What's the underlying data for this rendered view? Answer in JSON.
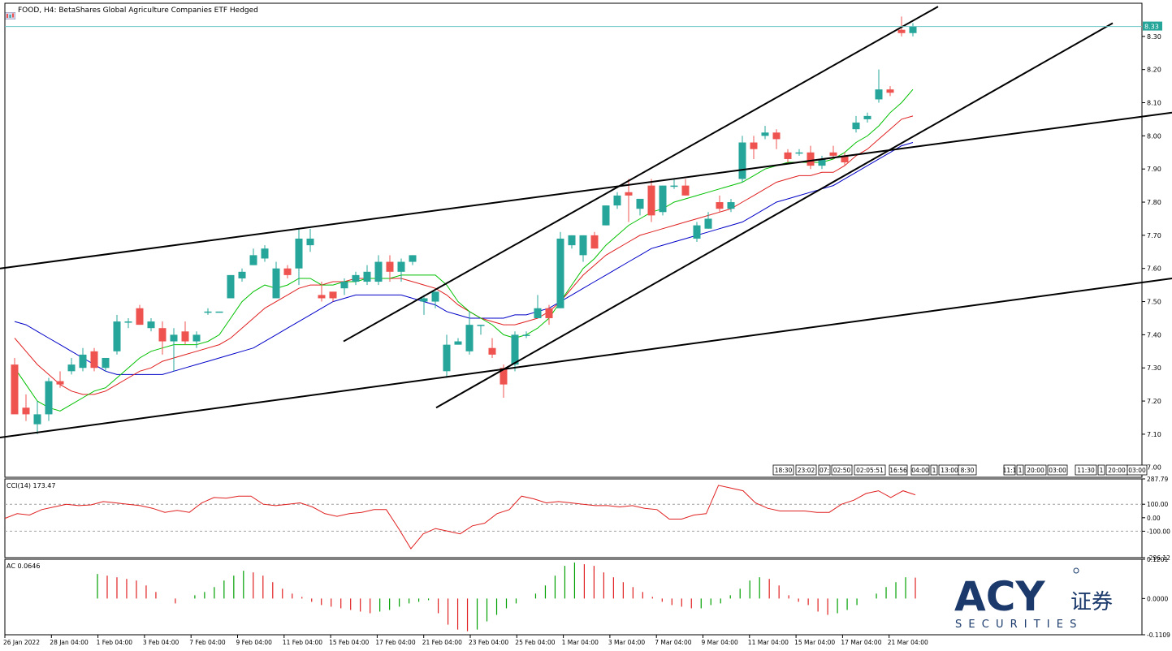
{
  "header": {
    "title": "FOOD, H4:  BetaShares Global Agriculture Companies ETF Hedged"
  },
  "brand": {
    "logo_text": "ACY",
    "logo_cn": "证券",
    "tagline": "S E C U R I T I E S"
  },
  "colors": {
    "bull": "#26a69a",
    "bear": "#ef5350",
    "ma_fast": "#00c000",
    "ma_mid": "#e02020",
    "ma_slow": "#0000c8",
    "cci_line": "#e02020",
    "bid_line": "#66c2c2",
    "logo": "#1b3a6b"
  },
  "price_pane": {
    "current_price_label": "8.33",
    "time_stamp_boxes": [
      "18:30",
      "23:02",
      "07:",
      "02:50",
      "02:05:51",
      "16:56",
      "04:00",
      "1",
      "13:00",
      "8:30",
      "11:1",
      "1",
      "20:00",
      "03:00",
      "11:30",
      "1",
      "20:00",
      "03:00"
    ]
  },
  "cci_pane": {
    "label": "CCI(14) 173.47",
    "y_ticks": [
      "287.79",
      "100.00",
      "0.00",
      "-100.00",
      "-296.12"
    ]
  },
  "ac_pane": {
    "label": "AC 0.0646",
    "y_ticks": [
      "0.1201",
      "0.0000",
      "-0.1109"
    ]
  },
  "x_axis": {
    "labels": [
      "26 Jan 2022",
      "28 Jan 04:00",
      "1 Feb 04:00",
      "3 Feb 04:00",
      "7 Feb 04:00",
      "9 Feb 04:00",
      "11 Feb 04:00",
      "15 Feb 04:00",
      "17 Feb 04:00",
      "21 Feb 04:00",
      "23 Feb 04:00",
      "25 Feb 04:00",
      "1 Mar 04:00",
      "3 Mar 04:00",
      "7 Mar 04:00",
      "9 Mar 04:00",
      "11 Mar 04:00",
      "15 Mar 04:00",
      "17 Mar 04:00",
      "21 Mar 04:00"
    ]
  },
  "chart_data": {
    "type": "candlestick",
    "y_axis": {
      "ticks": [
        7.0,
        7.1,
        7.2,
        7.3,
        7.4,
        7.5,
        7.6,
        7.7,
        7.8,
        7.9,
        8.0,
        8.1,
        8.2,
        8.3
      ],
      "range": [
        6.97,
        8.4
      ]
    },
    "candles": [
      {
        "o": 7.31,
        "h": 7.33,
        "l": 7.17,
        "c": 7.16
      },
      {
        "o": 7.18,
        "h": 7.22,
        "l": 7.14,
        "c": 7.16
      },
      {
        "o": 7.13,
        "h": 7.2,
        "l": 7.1,
        "c": 7.16
      },
      {
        "o": 7.16,
        "h": 7.27,
        "l": 7.14,
        "c": 7.26
      },
      {
        "o": 7.26,
        "h": 7.29,
        "l": 7.24,
        "c": 7.25
      },
      {
        "o": 7.29,
        "h": 7.33,
        "l": 7.28,
        "c": 7.31
      },
      {
        "o": 7.3,
        "h": 7.36,
        "l": 7.29,
        "c": 7.34
      },
      {
        "o": 7.35,
        "h": 7.36,
        "l": 7.29,
        "c": 7.3
      },
      {
        "o": 7.3,
        "h": 7.33,
        "l": 7.29,
        "c": 7.33
      },
      {
        "o": 7.35,
        "h": 7.46,
        "l": 7.34,
        "c": 7.44
      },
      {
        "o": 7.44,
        "h": 7.45,
        "l": 7.42,
        "c": 7.44
      },
      {
        "o": 7.48,
        "h": 7.49,
        "l": 7.43,
        "c": 7.43
      },
      {
        "o": 7.42,
        "h": 7.45,
        "l": 7.41,
        "c": 7.44
      },
      {
        "o": 7.42,
        "h": 7.44,
        "l": 7.34,
        "c": 7.38
      },
      {
        "o": 7.38,
        "h": 7.42,
        "l": 7.29,
        "c": 7.4
      },
      {
        "o": 7.41,
        "h": 7.44,
        "l": 7.37,
        "c": 7.38
      },
      {
        "o": 7.38,
        "h": 7.41,
        "l": 7.36,
        "c": 7.4
      },
      {
        "o": 7.47,
        "h": 7.48,
        "l": 7.46,
        "c": 7.47
      },
      {
        "o": 7.47,
        "h": 7.47,
        "l": 7.47,
        "c": 7.47
      },
      {
        "o": 7.51,
        "h": 7.58,
        "l": 7.51,
        "c": 7.58
      },
      {
        "o": 7.57,
        "h": 7.6,
        "l": 7.56,
        "c": 7.59
      },
      {
        "o": 7.61,
        "h": 7.66,
        "l": 7.61,
        "c": 7.64
      },
      {
        "o": 7.63,
        "h": 7.67,
        "l": 7.62,
        "c": 7.66
      },
      {
        "o": 7.51,
        "h": 7.62,
        "l": 7.51,
        "c": 7.6
      },
      {
        "o": 7.6,
        "h": 7.61,
        "l": 7.57,
        "c": 7.58
      },
      {
        "o": 7.6,
        "h": 7.72,
        "l": 7.55,
        "c": 7.69
      },
      {
        "o": 7.67,
        "h": 7.72,
        "l": 7.65,
        "c": 7.69
      },
      {
        "o": 7.52,
        "h": 7.56,
        "l": 7.5,
        "c": 7.51
      },
      {
        "o": 7.53,
        "h": 7.52,
        "l": 7.5,
        "c": 7.51
      },
      {
        "o": 7.54,
        "h": 7.57,
        "l": 7.52,
        "c": 7.56
      },
      {
        "o": 7.56,
        "h": 7.59,
        "l": 7.55,
        "c": 7.58
      },
      {
        "o": 7.56,
        "h": 7.61,
        "l": 7.55,
        "c": 7.59
      },
      {
        "o": 7.56,
        "h": 7.64,
        "l": 7.55,
        "c": 7.62
      },
      {
        "o": 7.62,
        "h": 7.64,
        "l": 7.56,
        "c": 7.59
      },
      {
        "o": 7.59,
        "h": 7.63,
        "l": 7.56,
        "c": 7.62
      },
      {
        "o": 7.62,
        "h": 7.64,
        "l": 7.61,
        "c": 7.64
      },
      {
        "o": 7.5,
        "h": 7.52,
        "l": 7.46,
        "c": 7.51
      },
      {
        "o": 7.5,
        "h": 7.53,
        "l": 7.48,
        "c": 7.53
      },
      {
        "o": 7.29,
        "h": 7.4,
        "l": 7.27,
        "c": 7.37
      },
      {
        "o": 7.37,
        "h": 7.39,
        "l": 7.37,
        "c": 7.38
      },
      {
        "o": 7.35,
        "h": 7.47,
        "l": 7.34,
        "c": 7.43
      },
      {
        "o": 7.43,
        "h": 7.43,
        "l": 7.4,
        "c": 7.43
      },
      {
        "o": 7.36,
        "h": 7.39,
        "l": 7.33,
        "c": 7.34
      },
      {
        "o": 7.3,
        "h": 7.31,
        "l": 7.21,
        "c": 7.25
      },
      {
        "o": 7.31,
        "h": 7.41,
        "l": 7.29,
        "c": 7.4
      },
      {
        "o": 7.4,
        "h": 7.41,
        "l": 7.39,
        "c": 7.4
      },
      {
        "o": 7.45,
        "h": 7.52,
        "l": 7.45,
        "c": 7.48
      },
      {
        "o": 7.48,
        "h": 7.49,
        "l": 7.43,
        "c": 7.45
      },
      {
        "o": 7.48,
        "h": 7.71,
        "l": 7.48,
        "c": 7.69
      },
      {
        "o": 7.67,
        "h": 7.7,
        "l": 7.66,
        "c": 7.7
      },
      {
        "o": 7.64,
        "h": 7.7,
        "l": 7.62,
        "c": 7.7
      },
      {
        "o": 7.7,
        "h": 7.71,
        "l": 7.66,
        "c": 7.66
      },
      {
        "o": 7.73,
        "h": 7.79,
        "l": 7.73,
        "c": 7.79
      },
      {
        "o": 7.79,
        "h": 7.83,
        "l": 7.78,
        "c": 7.82
      },
      {
        "o": 7.83,
        "h": 7.87,
        "l": 7.74,
        "c": 7.82
      },
      {
        "o": 7.78,
        "h": 7.81,
        "l": 7.76,
        "c": 7.81
      },
      {
        "o": 7.85,
        "h": 7.87,
        "l": 7.74,
        "c": 7.76
      },
      {
        "o": 7.77,
        "h": 7.85,
        "l": 7.76,
        "c": 7.85
      },
      {
        "o": 7.85,
        "h": 7.87,
        "l": 7.84,
        "c": 7.85
      },
      {
        "o": 7.85,
        "h": 7.87,
        "l": 7.82,
        "c": 7.82
      },
      {
        "o": 7.69,
        "h": 7.74,
        "l": 7.68,
        "c": 7.73
      },
      {
        "o": 7.72,
        "h": 7.77,
        "l": 7.72,
        "c": 7.75
      },
      {
        "o": 7.8,
        "h": 7.82,
        "l": 7.77,
        "c": 7.78
      },
      {
        "o": 7.78,
        "h": 7.81,
        "l": 7.77,
        "c": 7.8
      },
      {
        "o": 7.87,
        "h": 8.0,
        "l": 7.86,
        "c": 7.98
      },
      {
        "o": 7.98,
        "h": 8.0,
        "l": 7.93,
        "c": 7.96
      },
      {
        "o": 8.0,
        "h": 8.03,
        "l": 7.99,
        "c": 8.01
      },
      {
        "o": 8.01,
        "h": 8.02,
        "l": 7.96,
        "c": 7.99
      },
      {
        "o": 7.95,
        "h": 7.96,
        "l": 7.92,
        "c": 7.93
      },
      {
        "o": 7.95,
        "h": 7.96,
        "l": 7.94,
        "c": 7.95
      },
      {
        "o": 7.95,
        "h": 7.97,
        "l": 7.9,
        "c": 7.91
      },
      {
        "o": 7.91,
        "h": 7.94,
        "l": 7.9,
        "c": 7.93
      },
      {
        "o": 7.95,
        "h": 7.97,
        "l": 7.93,
        "c": 7.94
      },
      {
        "o": 7.94,
        "h": 7.95,
        "l": 7.91,
        "c": 7.92
      },
      {
        "o": 8.02,
        "h": 8.06,
        "l": 8.01,
        "c": 8.04
      },
      {
        "o": 8.05,
        "h": 8.07,
        "l": 8.04,
        "c": 8.06
      },
      {
        "o": 8.11,
        "h": 8.2,
        "l": 8.1,
        "c": 8.14
      },
      {
        "o": 8.14,
        "h": 8.15,
        "l": 8.12,
        "c": 8.13
      },
      {
        "o": 8.32,
        "h": 8.36,
        "l": 8.3,
        "c": 8.31
      },
      {
        "o": 8.31,
        "h": 8.34,
        "l": 8.3,
        "c": 8.33
      }
    ],
    "ma_fast": [
      7.3,
      7.25,
      7.2,
      7.18,
      7.17,
      7.19,
      7.21,
      7.23,
      7.24,
      7.27,
      7.3,
      7.33,
      7.35,
      7.36,
      7.37,
      7.37,
      7.37,
      7.38,
      7.4,
      7.45,
      7.5,
      7.53,
      7.55,
      7.54,
      7.55,
      7.57,
      7.57,
      7.55,
      7.55,
      7.56,
      7.56,
      7.57,
      7.57,
      7.57,
      7.58,
      7.58,
      7.58,
      7.58,
      7.55,
      7.5,
      7.47,
      7.45,
      7.43,
      7.4,
      7.39,
      7.4,
      7.42,
      7.45,
      7.5,
      7.55,
      7.6,
      7.63,
      7.67,
      7.7,
      7.73,
      7.75,
      7.77,
      7.78,
      7.8,
      7.81,
      7.82,
      7.83,
      7.84,
      7.85,
      7.86,
      7.88,
      7.9,
      7.91,
      7.92,
      7.92,
      7.92,
      7.92,
      7.93,
      7.95,
      7.98,
      8.0,
      8.03,
      8.07,
      8.1,
      8.14
    ],
    "ma_mid": [
      7.39,
      7.35,
      7.31,
      7.28,
      7.25,
      7.23,
      7.22,
      7.22,
      7.23,
      7.25,
      7.27,
      7.29,
      7.3,
      7.32,
      7.33,
      7.34,
      7.35,
      7.36,
      7.37,
      7.39,
      7.42,
      7.45,
      7.48,
      7.5,
      7.52,
      7.54,
      7.55,
      7.55,
      7.56,
      7.56,
      7.57,
      7.57,
      7.57,
      7.57,
      7.57,
      7.56,
      7.55,
      7.54,
      7.52,
      7.49,
      7.47,
      7.45,
      7.44,
      7.43,
      7.43,
      7.44,
      7.45,
      7.47,
      7.5,
      7.54,
      7.58,
      7.61,
      7.64,
      7.66,
      7.68,
      7.7,
      7.71,
      7.72,
      7.73,
      7.74,
      7.75,
      7.76,
      7.77,
      7.78,
      7.8,
      7.82,
      7.84,
      7.86,
      7.87,
      7.88,
      7.88,
      7.89,
      7.89,
      7.91,
      7.94,
      7.96,
      7.99,
      8.02,
      8.05,
      8.06
    ],
    "ma_slow": [
      7.44,
      7.43,
      7.41,
      7.39,
      7.37,
      7.35,
      7.33,
      7.31,
      7.29,
      7.28,
      7.28,
      7.28,
      7.28,
      7.28,
      7.29,
      7.3,
      7.31,
      7.32,
      7.33,
      7.34,
      7.35,
      7.36,
      7.38,
      7.4,
      7.42,
      7.44,
      7.46,
      7.48,
      7.5,
      7.51,
      7.52,
      7.52,
      7.52,
      7.52,
      7.52,
      7.51,
      7.5,
      7.49,
      7.47,
      7.46,
      7.45,
      7.45,
      7.45,
      7.45,
      7.46,
      7.46,
      7.47,
      7.48,
      7.5,
      7.52,
      7.54,
      7.56,
      7.58,
      7.6,
      7.62,
      7.64,
      7.66,
      7.67,
      7.68,
      7.69,
      7.7,
      7.71,
      7.72,
      7.73,
      7.74,
      7.76,
      7.78,
      7.8,
      7.81,
      7.82,
      7.83,
      7.84,
      7.85,
      7.87,
      7.89,
      7.91,
      7.93,
      7.95,
      7.97,
      7.98
    ],
    "trendlines": [
      {
        "x1": 0,
        "y1": 7.09,
        "x2": 1443,
        "y2": 7.57
      },
      {
        "x1": 0,
        "y1": 7.6,
        "x2": 1443,
        "y2": 8.07
      },
      {
        "x1": 423,
        "y1": 7.38,
        "x2": 1155,
        "y2": 8.39
      },
      {
        "x1": 537,
        "y1": 7.18,
        "x2": 1370,
        "y2": 8.34
      }
    ],
    "cci_values": [
      -5,
      30,
      20,
      60,
      80,
      100,
      90,
      95,
      120,
      110,
      100,
      90,
      70,
      40,
      55,
      40,
      110,
      150,
      145,
      160,
      160,
      100,
      90,
      100,
      110,
      80,
      30,
      10,
      30,
      40,
      60,
      60,
      -80,
      -230,
      -120,
      -80,
      -100,
      -120,
      -60,
      -40,
      30,
      60,
      160,
      140,
      110,
      120,
      110,
      100,
      90,
      90,
      80,
      90,
      70,
      60,
      -10,
      -10,
      20,
      30,
      240,
      220,
      200,
      110,
      70,
      50,
      50,
      50,
      40,
      40,
      100,
      130,
      180,
      200,
      150,
      200,
      170
    ],
    "ac_values": [
      0.075,
      0.07,
      0.065,
      0.06,
      0.055,
      0.04,
      0.02,
      0.0,
      -0.015,
      0.0,
      0.01,
      0.02,
      0.035,
      0.055,
      0.07,
      0.085,
      0.08,
      0.07,
      0.05,
      0.03,
      0.015,
      0.005,
      -0.01,
      -0.02,
      -0.025,
      -0.03,
      -0.035,
      -0.04,
      -0.045,
      -0.04,
      -0.035,
      -0.025,
      -0.015,
      -0.01,
      -0.005,
      -0.045,
      -0.08,
      -0.095,
      -0.1,
      -0.095,
      -0.07,
      -0.05,
      -0.03,
      -0.015,
      0.0,
      0.015,
      0.04,
      0.07,
      0.1,
      0.11,
      0.105,
      0.1,
      0.08,
      0.065,
      0.05,
      0.035,
      0.02,
      0.005,
      -0.01,
      -0.02,
      -0.025,
      -0.03,
      -0.03,
      -0.02,
      -0.015,
      0.01,
      0.03,
      0.055,
      0.065,
      0.06,
      0.04,
      0.01,
      -0.01,
      -0.02,
      -0.04,
      -0.05,
      -0.045,
      -0.035,
      -0.02,
      0.0,
      0.015,
      0.035,
      0.05,
      0.065,
      0.064
    ]
  }
}
